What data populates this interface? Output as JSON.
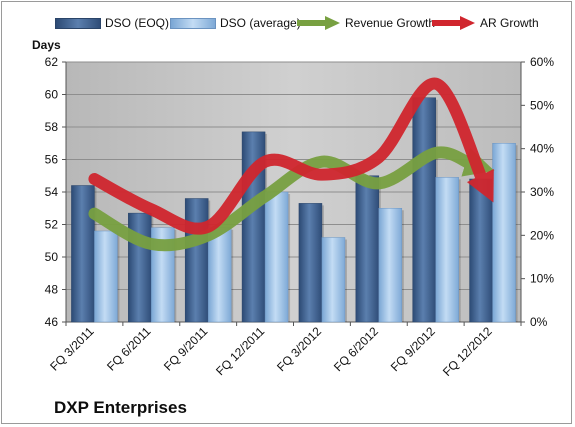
{
  "company": "DXP Enterprises",
  "colors": {
    "dso_eoq": "#3e5f8e",
    "dso_average": "#9dc1e8",
    "revenue_growth": "#78a041",
    "ar_growth": "#d0262e",
    "plot_bg": "#c4c4c4"
  },
  "legend": [
    {
      "label": "DSO (EOQ)",
      "kind": "bar",
      "color_key": "dso_eoq"
    },
    {
      "label": "DSO (average)",
      "kind": "bar",
      "color_key": "dso_average"
    },
    {
      "label": "Revenue Growth",
      "kind": "arrow",
      "color_key": "revenue_growth"
    },
    {
      "label": "AR Growth",
      "kind": "arrow",
      "color_key": "ar_growth"
    }
  ],
  "chart_data": {
    "type": "bar",
    "categories": [
      "FQ 3/2011",
      "FQ 6/2011",
      "FQ 9/2011",
      "FQ 12/2011",
      "FQ 3/2012",
      "FQ 6/2012",
      "FQ 9/2012",
      "FQ 12/2012"
    ],
    "ylabel": "Days",
    "ylim": [
      46,
      62
    ],
    "yticks": [
      46,
      48,
      50,
      52,
      54,
      56,
      58,
      60,
      62
    ],
    "y2lim": [
      0,
      60
    ],
    "y2ticks": [
      "0%",
      "10%",
      "20%",
      "30%",
      "40%",
      "50%",
      "60%"
    ],
    "legend_position": "top",
    "series": [
      {
        "name": "DSO (EOQ)",
        "type": "bar",
        "axis": "left",
        "values": [
          54.4,
          52.7,
          53.6,
          57.7,
          53.3,
          55.0,
          59.8,
          54.8
        ]
      },
      {
        "name": "DSO (average)",
        "type": "bar",
        "axis": "left",
        "values": [
          51.6,
          51.8,
          51.8,
          54.0,
          51.2,
          53.0,
          54.9,
          57.0
        ]
      },
      {
        "name": "Revenue Growth",
        "type": "line",
        "axis": "right",
        "unit": "%",
        "values": [
          25,
          18,
          20,
          29,
          37,
          32,
          39,
          35
        ]
      },
      {
        "name": "AR Growth",
        "type": "line",
        "axis": "right",
        "unit": "%",
        "values": [
          33,
          26,
          22,
          37,
          34,
          38,
          55,
          28
        ]
      }
    ]
  }
}
